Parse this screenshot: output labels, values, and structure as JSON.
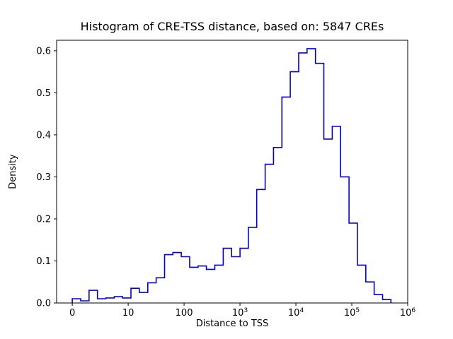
{
  "chart_data": {
    "type": "histogram-step",
    "title": "Histogram of CRE-TSS distance, based on: 5847 CREs",
    "xlabel": "Distance to TSS",
    "ylabel": "Density",
    "n_cres": 5847,
    "x_scale": "symlog",
    "x_linear_threshold": 10,
    "xlim_u": [
      -0.28,
      6.0
    ],
    "ylim": [
      0,
      0.625
    ],
    "line_color": "#0000dd",
    "axis_color": "#000000",
    "background_color": "#ffffff",
    "legend": "none",
    "grid": "off",
    "x_ticks": [
      {
        "value": 0,
        "label": "0"
      },
      {
        "value": 10,
        "label": "10"
      },
      {
        "value": 100,
        "label": "100"
      },
      {
        "value": 1000,
        "label": "10^3"
      },
      {
        "value": 10000,
        "label": "10^4"
      },
      {
        "value": 100000,
        "label": "10^5"
      },
      {
        "value": 1000000,
        "label": "10^6"
      }
    ],
    "y_ticks": [
      {
        "value": 0.0,
        "label": "0.0"
      },
      {
        "value": 0.1,
        "label": "0.1"
      },
      {
        "value": 0.2,
        "label": "0.2"
      },
      {
        "value": 0.3,
        "label": "0.3"
      },
      {
        "value": 0.4,
        "label": "0.4"
      },
      {
        "value": 0.5,
        "label": "0.5"
      },
      {
        "value": 0.6,
        "label": "0.6"
      }
    ],
    "bin_edges": [
      0,
      1.5,
      3,
      4.5,
      6,
      7.5,
      9,
      11.2,
      15.8,
      22.4,
      31.6,
      44.7,
      63.1,
      89.1,
      126,
      178,
      251,
      355,
      501,
      708,
      1000,
      1413,
      1995,
      2818,
      3981,
      5623,
      7943,
      11220,
      15849,
      22387,
      31623,
      44668,
      63096,
      89125,
      125893,
      177828,
      251189,
      354813,
      501187
    ],
    "densities": [
      0.01,
      0.005,
      0.03,
      0.01,
      0.012,
      0.015,
      0.012,
      0.035,
      0.025,
      0.048,
      0.06,
      0.115,
      0.12,
      0.11,
      0.085,
      0.088,
      0.08,
      0.09,
      0.13,
      0.11,
      0.13,
      0.18,
      0.27,
      0.33,
      0.37,
      0.49,
      0.55,
      0.595,
      0.605,
      0.57,
      0.39,
      0.42,
      0.3,
      0.19,
      0.09,
      0.05,
      0.02,
      0.008
    ]
  }
}
